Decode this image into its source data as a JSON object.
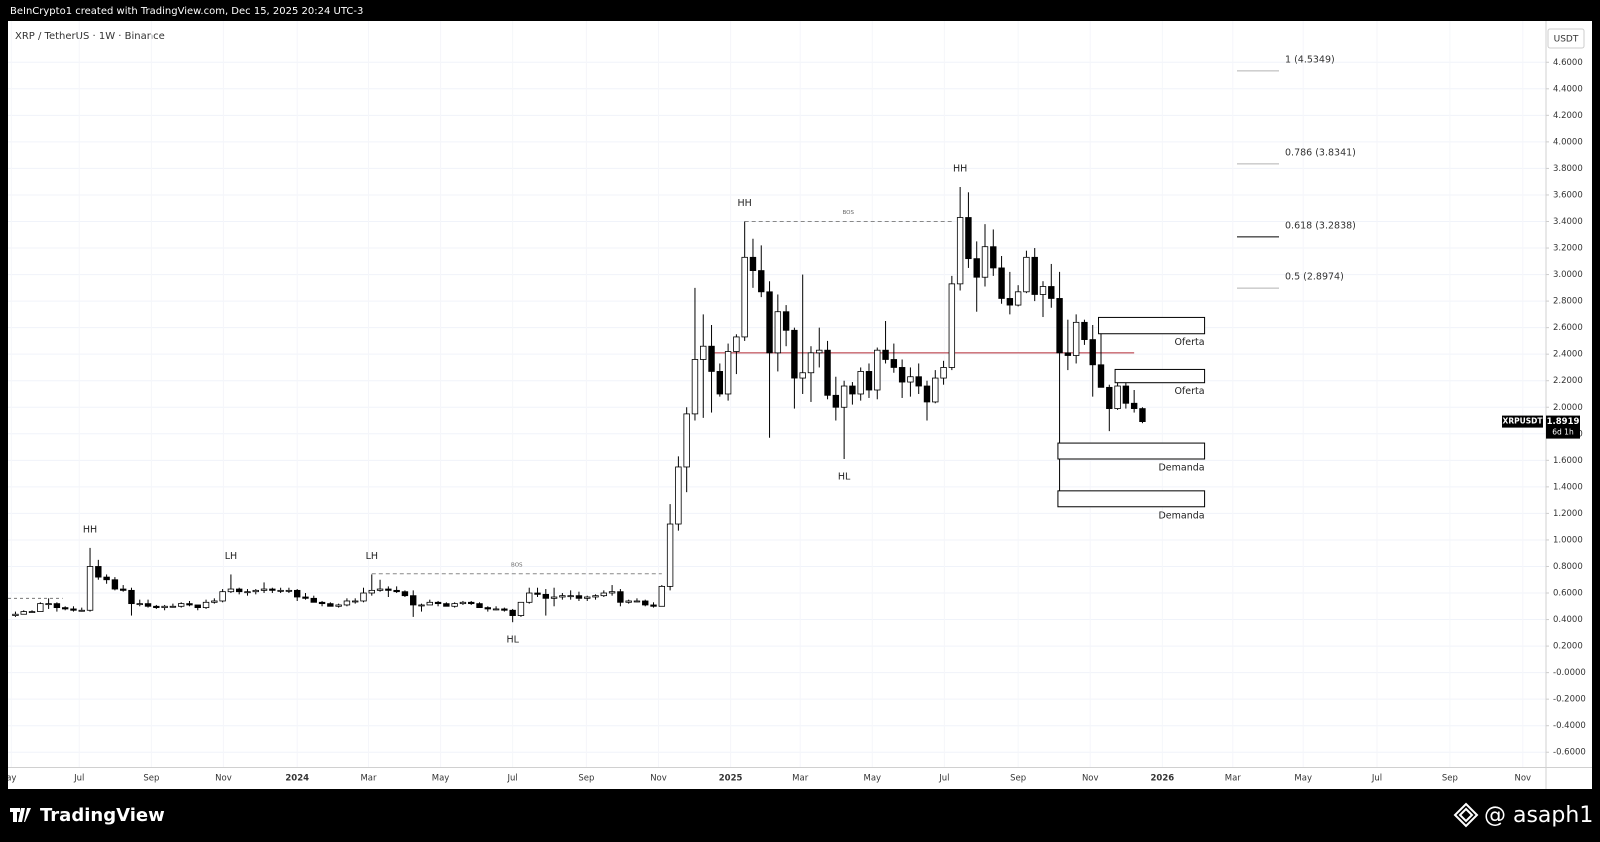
{
  "header": {
    "credit": "BeInCrypto1 created with TradingView.com, Dec 15, 2025 20:24 UTC-3",
    "symbol": "XRP / TetherUS · 1W · Binance"
  },
  "chart_data": {
    "type": "candlestick",
    "ohlc": [
      [
        0.43,
        0.46,
        0.42,
        0.44
      ],
      [
        0.44,
        0.47,
        0.44,
        0.46
      ],
      [
        0.46,
        0.47,
        0.45,
        0.46
      ],
      [
        0.46,
        0.53,
        0.46,
        0.52
      ],
      [
        0.52,
        0.56,
        0.48,
        0.52
      ],
      [
        0.52,
        0.53,
        0.46,
        0.49
      ],
      [
        0.49,
        0.5,
        0.47,
        0.48
      ],
      [
        0.48,
        0.5,
        0.46,
        0.47
      ],
      [
        0.47,
        0.49,
        0.46,
        0.47
      ],
      [
        0.47,
        0.94,
        0.46,
        0.8
      ],
      [
        0.8,
        0.85,
        0.7,
        0.72
      ],
      [
        0.72,
        0.74,
        0.67,
        0.7
      ],
      [
        0.7,
        0.72,
        0.62,
        0.63
      ],
      [
        0.63,
        0.66,
        0.61,
        0.62
      ],
      [
        0.62,
        0.64,
        0.43,
        0.52
      ],
      [
        0.52,
        0.55,
        0.5,
        0.52
      ],
      [
        0.52,
        0.55,
        0.49,
        0.5
      ],
      [
        0.5,
        0.51,
        0.48,
        0.49
      ],
      [
        0.49,
        0.51,
        0.47,
        0.5
      ],
      [
        0.5,
        0.52,
        0.49,
        0.5
      ],
      [
        0.5,
        0.53,
        0.49,
        0.52
      ],
      [
        0.52,
        0.54,
        0.5,
        0.51
      ],
      [
        0.51,
        0.51,
        0.47,
        0.49
      ],
      [
        0.49,
        0.55,
        0.48,
        0.53
      ],
      [
        0.53,
        0.56,
        0.52,
        0.54
      ],
      [
        0.54,
        0.63,
        0.53,
        0.61
      ],
      [
        0.61,
        0.74,
        0.6,
        0.63
      ],
      [
        0.63,
        0.64,
        0.59,
        0.61
      ],
      [
        0.61,
        0.63,
        0.58,
        0.61
      ],
      [
        0.61,
        0.63,
        0.59,
        0.62
      ],
      [
        0.62,
        0.68,
        0.6,
        0.63
      ],
      [
        0.63,
        0.64,
        0.6,
        0.62
      ],
      [
        0.62,
        0.64,
        0.6,
        0.62
      ],
      [
        0.62,
        0.64,
        0.6,
        0.62
      ],
      [
        0.62,
        0.63,
        0.54,
        0.57
      ],
      [
        0.57,
        0.6,
        0.55,
        0.56
      ],
      [
        0.56,
        0.58,
        0.53,
        0.53
      ],
      [
        0.53,
        0.54,
        0.5,
        0.52
      ],
      [
        0.52,
        0.53,
        0.5,
        0.5
      ],
      [
        0.5,
        0.52,
        0.49,
        0.51
      ],
      [
        0.51,
        0.56,
        0.5,
        0.54
      ],
      [
        0.54,
        0.56,
        0.52,
        0.54
      ],
      [
        0.54,
        0.64,
        0.53,
        0.6
      ],
      [
        0.6,
        0.74,
        0.58,
        0.62
      ],
      [
        0.62,
        0.7,
        0.61,
        0.63
      ],
      [
        0.63,
        0.65,
        0.57,
        0.62
      ],
      [
        0.62,
        0.65,
        0.6,
        0.61
      ],
      [
        0.61,
        0.62,
        0.57,
        0.58
      ],
      [
        0.58,
        0.62,
        0.42,
        0.51
      ],
      [
        0.51,
        0.52,
        0.46,
        0.51
      ],
      [
        0.51,
        0.55,
        0.51,
        0.53
      ],
      [
        0.53,
        0.54,
        0.5,
        0.52
      ],
      [
        0.52,
        0.53,
        0.5,
        0.5
      ],
      [
        0.5,
        0.53,
        0.49,
        0.52
      ],
      [
        0.52,
        0.54,
        0.51,
        0.53
      ],
      [
        0.53,
        0.54,
        0.51,
        0.52
      ],
      [
        0.52,
        0.53,
        0.49,
        0.49
      ],
      [
        0.49,
        0.5,
        0.46,
        0.48
      ],
      [
        0.48,
        0.5,
        0.47,
        0.48
      ],
      [
        0.48,
        0.49,
        0.46,
        0.47
      ],
      [
        0.47,
        0.48,
        0.38,
        0.43
      ],
      [
        0.43,
        0.53,
        0.42,
        0.53
      ],
      [
        0.53,
        0.64,
        0.52,
        0.6
      ],
      [
        0.6,
        0.64,
        0.57,
        0.59
      ],
      [
        0.59,
        0.63,
        0.43,
        0.56
      ],
      [
        0.56,
        0.64,
        0.5,
        0.57
      ],
      [
        0.57,
        0.6,
        0.55,
        0.58
      ],
      [
        0.58,
        0.62,
        0.55,
        0.58
      ],
      [
        0.58,
        0.61,
        0.54,
        0.56
      ],
      [
        0.56,
        0.58,
        0.54,
        0.57
      ],
      [
        0.57,
        0.59,
        0.55,
        0.58
      ],
      [
        0.58,
        0.62,
        0.57,
        0.6
      ],
      [
        0.6,
        0.66,
        0.58,
        0.61
      ],
      [
        0.61,
        0.63,
        0.5,
        0.53
      ],
      [
        0.53,
        0.55,
        0.52,
        0.54
      ],
      [
        0.54,
        0.56,
        0.53,
        0.54
      ],
      [
        0.54,
        0.55,
        0.5,
        0.51
      ],
      [
        0.51,
        0.53,
        0.49,
        0.5
      ],
      [
        0.5,
        0.66,
        0.5,
        0.65
      ],
      [
        0.65,
        1.27,
        0.62,
        1.12
      ],
      [
        1.12,
        1.63,
        1.07,
        1.55
      ],
      [
        1.55,
        2.0,
        1.36,
        1.95
      ],
      [
        1.95,
        2.9,
        1.9,
        2.36
      ],
      [
        2.36,
        2.7,
        1.92,
        2.46
      ],
      [
        2.46,
        2.62,
        1.96,
        2.27
      ],
      [
        2.27,
        2.33,
        2.08,
        2.1
      ],
      [
        2.1,
        2.48,
        2.05,
        2.42
      ],
      [
        2.42,
        2.55,
        2.25,
        2.53
      ],
      [
        2.53,
        3.4,
        2.5,
        3.13
      ],
      [
        3.13,
        3.27,
        2.9,
        3.03
      ],
      [
        3.03,
        3.22,
        2.83,
        2.87
      ],
      [
        2.87,
        2.95,
        1.77,
        2.41
      ],
      [
        2.41,
        2.85,
        2.27,
        2.72
      ],
      [
        2.72,
        2.77,
        2.46,
        2.58
      ],
      [
        2.58,
        2.6,
        1.99,
        2.22
      ],
      [
        2.22,
        3.0,
        2.1,
        2.26
      ],
      [
        2.26,
        2.46,
        2.04,
        2.41
      ],
      [
        2.41,
        2.6,
        2.3,
        2.43
      ],
      [
        2.43,
        2.5,
        2.06,
        2.09
      ],
      [
        2.09,
        2.23,
        1.9,
        2.0
      ],
      [
        2.0,
        2.2,
        1.61,
        2.16
      ],
      [
        2.16,
        2.19,
        2.02,
        2.1
      ],
      [
        2.1,
        2.3,
        2.05,
        2.27
      ],
      [
        2.27,
        2.33,
        2.07,
        2.13
      ],
      [
        2.13,
        2.45,
        2.06,
        2.43
      ],
      [
        2.43,
        2.65,
        2.33,
        2.36
      ],
      [
        2.36,
        2.48,
        2.26,
        2.3
      ],
      [
        2.3,
        2.36,
        2.07,
        2.19
      ],
      [
        2.19,
        2.3,
        2.08,
        2.23
      ],
      [
        2.23,
        2.33,
        2.1,
        2.16
      ],
      [
        2.16,
        2.2,
        1.9,
        2.04
      ],
      [
        2.04,
        2.28,
        2.03,
        2.22
      ],
      [
        2.22,
        2.35,
        2.17,
        2.3
      ],
      [
        2.3,
        2.99,
        2.28,
        2.93
      ],
      [
        2.93,
        3.66,
        2.88,
        3.43
      ],
      [
        3.43,
        3.62,
        3.05,
        3.12
      ],
      [
        3.12,
        3.25,
        2.72,
        2.98
      ],
      [
        2.98,
        3.38,
        2.91,
        3.21
      ],
      [
        3.21,
        3.34,
        2.99,
        3.05
      ],
      [
        3.05,
        3.14,
        2.78,
        2.82
      ],
      [
        2.82,
        3.02,
        2.7,
        2.77
      ],
      [
        2.77,
        2.92,
        2.76,
        2.87
      ],
      [
        2.87,
        3.18,
        2.86,
        3.13
      ],
      [
        3.13,
        3.2,
        2.8,
        2.85
      ],
      [
        2.85,
        2.95,
        2.68,
        2.91
      ],
      [
        2.91,
        3.08,
        2.75,
        2.82
      ],
      [
        2.82,
        3.02,
        1.25,
        2.41
      ],
      [
        2.41,
        2.66,
        2.28,
        2.39
      ],
      [
        2.39,
        2.7,
        2.33,
        2.64
      ],
      [
        2.64,
        2.66,
        2.47,
        2.51
      ],
      [
        2.51,
        2.62,
        2.08,
        2.32
      ],
      [
        2.32,
        2.58,
        2.17,
        2.15
      ],
      [
        2.15,
        2.17,
        1.82,
        1.99
      ],
      [
        1.99,
        2.27,
        1.98,
        2.16
      ],
      [
        2.16,
        2.22,
        1.99,
        2.03
      ],
      [
        2.03,
        2.13,
        1.96,
        1.99
      ],
      [
        1.99,
        2.0,
        1.88,
        1.8919
      ]
    ],
    "up_color": "#ffffff",
    "down_color": "#000000",
    "xlim": [
      -0.9,
      184.7
    ],
    "xticks": [
      {
        "value": -0.5,
        "label": "ay"
      },
      {
        "value": 7.7,
        "label": "Jul"
      },
      {
        "value": 16.4,
        "label": "Sep"
      },
      {
        "value": 25.1,
        "label": "Nov"
      },
      {
        "value": 34,
        "label": "2024"
      },
      {
        "value": 42.6,
        "label": "Mar"
      },
      {
        "value": 51.3,
        "label": "May"
      },
      {
        "value": 60,
        "label": "Jul"
      },
      {
        "value": 68.9,
        "label": "Sep"
      },
      {
        "value": 77.6,
        "label": "Nov"
      },
      {
        "value": 86.3,
        "label": "2025"
      },
      {
        "value": 94.7,
        "label": "Mar"
      },
      {
        "value": 103.4,
        "label": "May"
      },
      {
        "value": 112.1,
        "label": "Jul"
      },
      {
        "value": 121,
        "label": "Sep"
      },
      {
        "value": 129.7,
        "label": "Nov"
      },
      {
        "value": 138.4,
        "label": "2026"
      },
      {
        "value": 146.9,
        "label": "Mar"
      },
      {
        "value": 155.4,
        "label": "May"
      },
      {
        "value": 164.3,
        "label": "Jul"
      },
      {
        "value": 173.1,
        "label": "Sep"
      },
      {
        "value": 181.9,
        "label": "Nov"
      }
    ],
    "ylim": [
      -0.715,
      4.911
    ],
    "yticks": [
      {
        "value": 4.6,
        "label": "4.6000"
      },
      {
        "value": 4.4,
        "label": "4.4000"
      },
      {
        "value": 4.2,
        "label": "4.2000"
      },
      {
        "value": 4.0,
        "label": "4.0000"
      },
      {
        "value": 3.8,
        "label": "3.8000"
      },
      {
        "value": 3.6,
        "label": "3.6000"
      },
      {
        "value": 3.4,
        "label": "3.4000"
      },
      {
        "value": 3.2,
        "label": "3.2000"
      },
      {
        "value": 3.0,
        "label": "3.0000"
      },
      {
        "value": 2.8,
        "label": "2.8000"
      },
      {
        "value": 2.6,
        "label": "2.6000"
      },
      {
        "value": 2.4,
        "label": "2.4000"
      },
      {
        "value": 2.2,
        "label": "2.2000"
      },
      {
        "value": 2.0,
        "label": "2.0000"
      },
      {
        "value": 1.8,
        "label": "1.8000"
      },
      {
        "value": 1.6,
        "label": "1.6000"
      },
      {
        "value": 1.4,
        "label": "1.4000"
      },
      {
        "value": 1.2,
        "label": "1.2000"
      },
      {
        "value": 1.0,
        "label": "1.0000"
      },
      {
        "value": 0.8,
        "label": "0.8000"
      },
      {
        "value": 0.6,
        "label": "0.6000"
      },
      {
        "value": 0.4,
        "label": "0.4000"
      },
      {
        "value": 0.2,
        "label": "0.2000"
      },
      {
        "value": 0,
        "label": "-0.0000"
      },
      {
        "value": -0.2,
        "label": "-0.2000"
      },
      {
        "value": -0.4,
        "label": "-0.4000"
      },
      {
        "value": -0.6,
        "label": "-0.6000"
      }
    ],
    "y_axis_label": "USDT",
    "grid": true,
    "price_tag": {
      "symbol": "XRPUSDT",
      "value": 1.8919,
      "countdown": "6d 1h"
    },
    "fib_levels": [
      {
        "label": "1 (4.5349)",
        "value": 4.5349,
        "color": "#b2b2b2"
      },
      {
        "label": "0.786 (3.8341)",
        "value": 3.8341,
        "color": "#b2b2b2"
      },
      {
        "label": "0.618 (3.2838)",
        "value": 3.2838,
        "color": "#000000"
      },
      {
        "label": "0.5 (2.8974)",
        "value": 2.8974,
        "color": "#b2b2b2"
      }
    ],
    "level_line": {
      "value": 2.41,
      "x": [
        83.7,
        135
      ],
      "color": "#b22833"
    },
    "bos": [
      {
        "label": "BOS",
        "value": 3.4,
        "x": [
          88,
          113
        ]
      },
      {
        "label": "BOS",
        "value": 0.745,
        "x": [
          43,
          78
        ]
      }
    ],
    "dashed_lines": [
      {
        "value": 0.56,
        "x": [
          -0.9,
          5.7
        ]
      }
    ],
    "swing_labels": [
      {
        "text": "HH",
        "x": 9,
        "y": 0.94,
        "side": "above"
      },
      {
        "text": "LH",
        "x": 26,
        "y": 0.74,
        "side": "above"
      },
      {
        "text": "LH",
        "x": 43,
        "y": 0.74,
        "side": "above"
      },
      {
        "text": "HL",
        "x": 60,
        "y": 0.38,
        "side": "below"
      },
      {
        "text": "HH",
        "x": 88,
        "y": 3.4,
        "side": "above"
      },
      {
        "text": "HL",
        "x": 100,
        "y": 1.61,
        "side": "below"
      },
      {
        "text": "HH",
        "x": 114,
        "y": 3.66,
        "side": "above"
      }
    ],
    "zones": [
      {
        "label": "Oferta",
        "x": [
          130.7,
          143.5
        ],
        "y": [
          2.554,
          2.677
        ]
      },
      {
        "label": "Oferta",
        "x": [
          132.7,
          143.5
        ],
        "y": [
          2.185,
          2.285
        ]
      },
      {
        "label": "Demanda",
        "x": [
          125.8,
          143.5
        ],
        "y": [
          1.61,
          1.73
        ]
      },
      {
        "label": "Demanda",
        "x": [
          125.8,
          143.5
        ],
        "y": [
          1.25,
          1.37
        ]
      }
    ]
  },
  "footer": {
    "brand": "TradingView",
    "author": "@ asaph1"
  }
}
